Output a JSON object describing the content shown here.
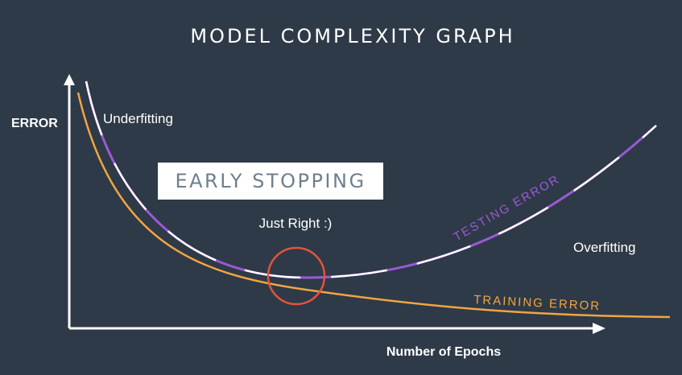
{
  "diagram": {
    "title": "MODEL COMPLEXITY GRAPH",
    "y_axis_label": "ERROR",
    "x_axis_label": "Number of Epochs",
    "annotations": {
      "underfitting": "Underfitting",
      "early_stopping": "EARLY STOPPING",
      "just_right": "Just Right :)",
      "overfitting": "Overfitting",
      "testing_error": "TESTING ERROR",
      "training_error": "TRAINING ERROR"
    },
    "colors": {
      "background": "#2e3a47",
      "training_curve": "#f2a541",
      "testing_curve_a": "#9b59d6",
      "testing_curve_b": "#ffffff",
      "highlight_circle": "#e5533d",
      "axes": "#ffffff"
    }
  }
}
